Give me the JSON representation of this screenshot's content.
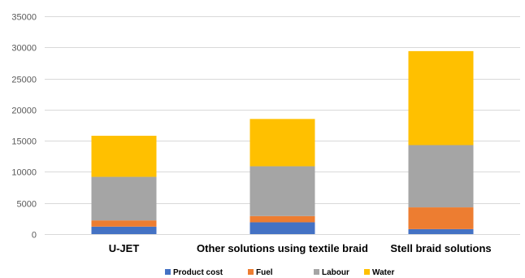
{
  "chart_data": {
    "type": "bar",
    "stacked": true,
    "categories": [
      "U-JET",
      "Other solutions using textile braid",
      "Stell braid solutions"
    ],
    "series": [
      {
        "name": "Product cost",
        "color": "#4472c4",
        "values": [
          1200,
          1900,
          800
        ]
      },
      {
        "name": "Fuel",
        "color": "#ed7d31",
        "values": [
          1000,
          1000,
          3500
        ]
      },
      {
        "name": "Labour",
        "color": "#a5a5a5",
        "values": [
          7000,
          8000,
          10000
        ]
      },
      {
        "name": "Water",
        "color": "#ffc000",
        "values": [
          6600,
          7600,
          15100
        ]
      }
    ],
    "ylim": [
      0,
      35000
    ],
    "yticks": [
      0,
      5000,
      10000,
      15000,
      20000,
      25000,
      30000,
      35000
    ],
    "grid": true,
    "legend": "bottom"
  }
}
